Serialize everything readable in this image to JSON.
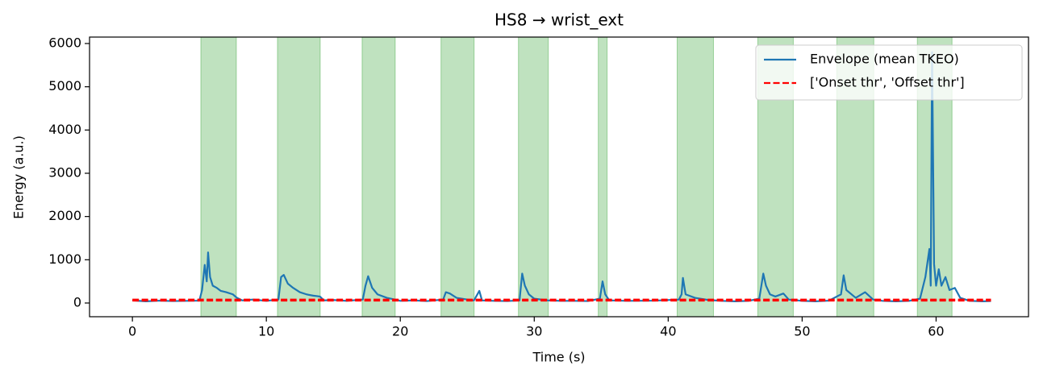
{
  "chart_data": {
    "type": "line",
    "title": "HS8 → wrist_ext",
    "x_label": "Time (s)",
    "y_label": "Energy (a.u.)",
    "xlim": [
      -3.2,
      66.9
    ],
    "ylim": [
      -317,
      6149
    ],
    "xticks": [
      0,
      10,
      20,
      30,
      40,
      50,
      60
    ],
    "yticks": [
      0,
      1000,
      2000,
      3000,
      4000,
      5000,
      6000
    ],
    "grid": false,
    "legend": "upper right",
    "spans": [
      [
        5.11,
        7.76
      ],
      [
        10.83,
        14.02
      ],
      [
        17.15,
        19.62
      ],
      [
        23.04,
        25.51
      ],
      [
        28.82,
        31.05
      ],
      [
        34.78,
        35.44
      ],
      [
        40.67,
        43.38
      ],
      [
        46.69,
        49.34
      ],
      [
        52.59,
        55.35
      ],
      [
        58.6,
        61.19
      ]
    ],
    "span_color": "#2ca02c",
    "series": [
      {
        "name": "Envelope (mean TKEO)",
        "color": "#1f77b4",
        "x": [
          0,
          1,
          2,
          3,
          4,
          5,
          5.2,
          5.4,
          5.55,
          5.65,
          5.8,
          6.0,
          6.3,
          6.6,
          7.0,
          7.5,
          7.8,
          8.2,
          9,
          10,
          10.9,
          11.1,
          11.3,
          11.6,
          12,
          12.5,
          13,
          13.5,
          14,
          14.3,
          15,
          16,
          17.2,
          17.4,
          17.6,
          17.9,
          18.3,
          19,
          19.6,
          20,
          21,
          22,
          23.2,
          23.4,
          23.7,
          24.2,
          25,
          25.5,
          25.9,
          26.1,
          27,
          28,
          28.9,
          29.1,
          29.3,
          29.6,
          30,
          31,
          32,
          33,
          34,
          34.9,
          35.1,
          35.3,
          35.6,
          37,
          39,
          40.8,
          41,
          41.1,
          41.3,
          42,
          43,
          44,
          45,
          46,
          46.8,
          47.1,
          47.3,
          47.6,
          48,
          48.6,
          49,
          50,
          51,
          52,
          52.9,
          53.1,
          53.3,
          54,
          54.7,
          55.3,
          56,
          57,
          58,
          58.8,
          59.2,
          59.5,
          59.6,
          59.7,
          59.85,
          60,
          60.2,
          60.4,
          60.7,
          61,
          61.4,
          61.8,
          62.5,
          63.5,
          64.1
        ],
        "values": [
          60,
          40,
          55,
          45,
          50,
          55,
          300,
          880,
          500,
          1170,
          600,
          400,
          350,
          280,
          250,
          200,
          120,
          60,
          80,
          50,
          80,
          600,
          650,
          450,
          350,
          250,
          200,
          170,
          150,
          60,
          70,
          50,
          80,
          400,
          620,
          350,
          200,
          120,
          80,
          50,
          60,
          45,
          80,
          250,
          220,
          120,
          80,
          60,
          280,
          60,
          50,
          45,
          60,
          680,
          400,
          200,
          100,
          60,
          50,
          50,
          45,
          100,
          500,
          200,
          60,
          50,
          55,
          80,
          200,
          580,
          200,
          120,
          70,
          50,
          40,
          50,
          100,
          680,
          400,
          200,
          150,
          220,
          80,
          50,
          40,
          55,
          200,
          640,
          300,
          120,
          250,
          80,
          50,
          40,
          50,
          100,
          600,
          1250,
          400,
          5800,
          900,
          400,
          780,
          400,
          600,
          300,
          350,
          120,
          50,
          40,
          45
        ]
      },
      {
        "name": "['Onset thr', 'Offset thr']",
        "color": "#ff0000",
        "dashed": true,
        "xrange": [
          0,
          64.1
        ],
        "levels": [
          80,
          55
        ]
      }
    ]
  }
}
